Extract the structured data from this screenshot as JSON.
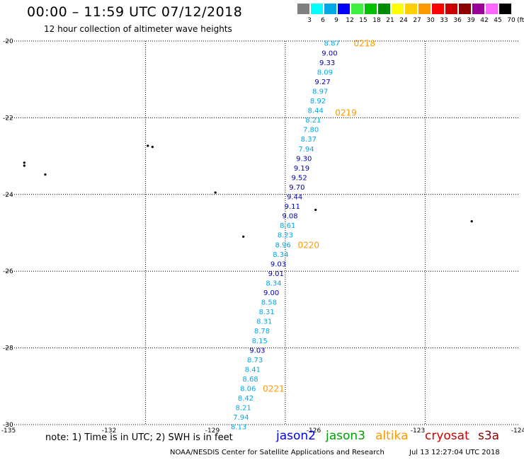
{
  "header": {
    "title": "00:00 – 11:59 UTC 07/12/2018",
    "subtitle": "12 hour collection of altimeter wave heights"
  },
  "legend": {
    "unit": "(ft)",
    "bins": [
      {
        "label": "3",
        "color": "#7f7f7f"
      },
      {
        "label": "6",
        "color": "#00ffff"
      },
      {
        "label": "9",
        "color": "#00a8e8"
      },
      {
        "label": "12",
        "color": "#0000ff"
      },
      {
        "label": "15",
        "color": "#40f040"
      },
      {
        "label": "18",
        "color": "#00c000"
      },
      {
        "label": "21",
        "color": "#008a00"
      },
      {
        "label": "24",
        "color": "#ffff00"
      },
      {
        "label": "27",
        "color": "#ffd000"
      },
      {
        "label": "30",
        "color": "#ff9900"
      },
      {
        "label": "33",
        "color": "#ff0000"
      },
      {
        "label": "36",
        "color": "#cc0000"
      },
      {
        "label": "39",
        "color": "#8a0000"
      },
      {
        "label": "42",
        "color": "#990099"
      },
      {
        "label": "45",
        "color": "#ff66ff"
      },
      {
        "label": "70",
        "color": "#000000"
      }
    ]
  },
  "chart_data": {
    "type": "scatter",
    "title": "00:00 – 11:59 UTC 07/12/2018",
    "subtitle": "12 hour collection of altimeter wave heights",
    "xlim": [
      -135,
      -124
    ],
    "ylim": [
      -30,
      -20
    ],
    "x_ticks": [
      "-135",
      "-132",
      "-129",
      "-126",
      "-123",
      "-124"
    ],
    "y_ticks": [
      "-20",
      "-22",
      "-24",
      "-26",
      "-28",
      "-30"
    ],
    "grid": true,
    "series": [
      {
        "name": "jason2",
        "color_rule": "swh",
        "points": [
          {
            "lon": -128.0,
            "lat": -20.05,
            "swh": "8.87"
          },
          {
            "lon": -128.05,
            "lat": -20.3,
            "swh": "9.00"
          },
          {
            "lon": -128.1,
            "lat": -20.55,
            "swh": "9.33"
          },
          {
            "lon": -128.15,
            "lat": -20.8,
            "swh": "8.09"
          },
          {
            "lon": -128.2,
            "lat": -21.05,
            "swh": "9.27"
          },
          {
            "lon": -128.25,
            "lat": -21.3,
            "swh": "8.97"
          },
          {
            "lon": -128.3,
            "lat": -21.55,
            "swh": "8.92"
          },
          {
            "lon": -128.35,
            "lat": -21.8,
            "swh": "8.44"
          },
          {
            "lon": -128.4,
            "lat": -22.05,
            "swh": "8.21"
          },
          {
            "lon": -128.45,
            "lat": -22.3,
            "swh": "7.80"
          },
          {
            "lon": -128.5,
            "lat": -22.55,
            "swh": "8.37"
          },
          {
            "lon": -128.55,
            "lat": -22.8,
            "swh": "7.94"
          },
          {
            "lon": -128.6,
            "lat": -23.05,
            "swh": "9.30"
          },
          {
            "lon": -128.65,
            "lat": -23.3,
            "swh": "9.19"
          },
          {
            "lon": -128.7,
            "lat": -23.55,
            "swh": "9.52"
          },
          {
            "lon": -128.75,
            "lat": -23.8,
            "swh": "9.70"
          },
          {
            "lon": -128.8,
            "lat": -24.05,
            "swh": "9.44"
          },
          {
            "lon": -128.85,
            "lat": -24.3,
            "swh": "9.11"
          },
          {
            "lon": -128.9,
            "lat": -24.55,
            "swh": "9.08"
          },
          {
            "lon": -128.95,
            "lat": -24.8,
            "swh": "8.61"
          },
          {
            "lon": -129.0,
            "lat": -25.05,
            "swh": "8.23"
          },
          {
            "lon": -129.05,
            "lat": -25.3,
            "swh": "8.96"
          },
          {
            "lon": -129.1,
            "lat": -25.55,
            "swh": "8.34"
          },
          {
            "lon": -129.15,
            "lat": -25.8,
            "swh": "9.03"
          },
          {
            "lon": -129.2,
            "lat": -26.05,
            "swh": "9.01"
          },
          {
            "lon": -129.25,
            "lat": -26.3,
            "swh": "8.34"
          },
          {
            "lon": -129.3,
            "lat": -26.55,
            "swh": "9.00"
          },
          {
            "lon": -129.35,
            "lat": -26.8,
            "swh": "8.58"
          },
          {
            "lon": -129.4,
            "lat": -27.05,
            "swh": "8.31"
          },
          {
            "lon": -129.45,
            "lat": -27.3,
            "swh": "8.31"
          },
          {
            "lon": -129.5,
            "lat": -27.55,
            "swh": "8.78"
          },
          {
            "lon": -129.55,
            "lat": -27.8,
            "swh": "8.15"
          },
          {
            "lon": -129.6,
            "lat": -28.05,
            "swh": "9.03"
          },
          {
            "lon": -129.65,
            "lat": -28.3,
            "swh": "8.73"
          },
          {
            "lon": -129.7,
            "lat": -28.55,
            "swh": "8.41"
          },
          {
            "lon": -129.75,
            "lat": -28.8,
            "swh": "8.68"
          },
          {
            "lon": -129.8,
            "lat": -29.05,
            "swh": "8.06"
          },
          {
            "lon": -129.85,
            "lat": -29.3,
            "swh": "8.42"
          },
          {
            "lon": -129.9,
            "lat": -29.55,
            "swh": "8.21"
          },
          {
            "lon": -129.95,
            "lat": -29.8,
            "swh": "7.94"
          },
          {
            "lon": -130.0,
            "lat": -30.05,
            "swh": "8.13"
          }
        ]
      }
    ],
    "time_labels": [
      {
        "lon": -127.3,
        "lat": -20.05,
        "text": "0218"
      },
      {
        "lon": -127.7,
        "lat": -21.85,
        "text": "0219"
      },
      {
        "lon": -128.5,
        "lat": -25.3,
        "text": "0220"
      },
      {
        "lon": -129.25,
        "lat": -29.05,
        "text": "0221"
      }
    ],
    "islands": [
      {
        "lon": -131.95,
        "lat": -22.73
      },
      {
        "lon": -131.85,
        "lat": -22.76
      },
      {
        "lon": -134.6,
        "lat": -23.17
      },
      {
        "lon": -134.6,
        "lat": -23.25
      },
      {
        "lon": -134.15,
        "lat": -23.48
      },
      {
        "lon": -130.5,
        "lat": -23.95
      },
      {
        "lon": -129.9,
        "lat": -25.1
      },
      {
        "lon": -128.35,
        "lat": -24.4
      },
      {
        "lon": -125.0,
        "lat": -24.7
      }
    ]
  },
  "colors": {
    "swh_low": "#00a8e8",
    "swh_mid": "#0000b0",
    "time_label": "#ff9900",
    "grid": "#000000"
  },
  "footer": {
    "note": "note: 1) Time is in UTC; 2) SWH is in feet",
    "satellites": [
      {
        "name": "jason2",
        "color": "#0000ff"
      },
      {
        "name": "jason3",
        "color": "#00a000"
      },
      {
        "name": "altika",
        "color": "#ff9900"
      },
      {
        "name": "cryosat",
        "color": "#cc0000"
      },
      {
        "name": "s3a",
        "color": "#880000"
      }
    ],
    "credit": "NOAA/NESDIS Center for Satellite Applications and Research",
    "timestamp": "Jul 13 12:27:04 UTC 2018"
  }
}
